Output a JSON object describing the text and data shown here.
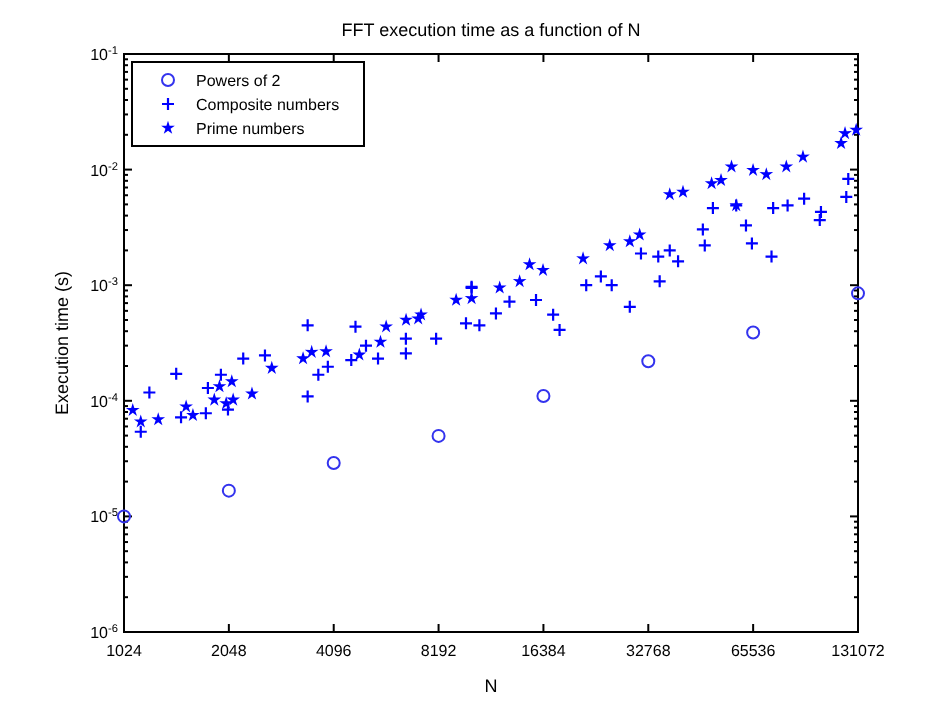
{
  "chart_data": {
    "type": "scatter",
    "title": "FFT execution time as a function of N",
    "xlabel": "N",
    "ylabel": "Execution time (s)",
    "log": "xy",
    "grid": false,
    "legend": "top left",
    "xlim": [
      1024,
      131072
    ],
    "xticks": [
      1024,
      2048,
      4096,
      8192,
      16384,
      32768,
      65536,
      131072
    ],
    "ylim": [
      1e-06,
      0.1
    ],
    "yticks": [
      {
        "value": 1e-06,
        "label": "10$^{-6}$"
      },
      {
        "value": 1e-05,
        "label": "10$^{-5}$"
      },
      {
        "value": 0.0001,
        "label": "10$^{-4}$"
      },
      {
        "value": 0.001,
        "label": "10$^{-3}$"
      },
      {
        "value": 0.01,
        "label": "10$^{-2}$"
      },
      {
        "value": 0.1,
        "label": "10$^{-1}$"
      }
    ],
    "series": [
      {
        "name": "Powers of 2",
        "color": "#3333ee",
        "marker": "circle",
        "x": [
          1024,
          2048,
          4096,
          8192,
          16384,
          32768,
          65536,
          131072
        ],
        "values": [
          1e-05,
          1.67e-05,
          2.9e-05,
          4.97e-05,
          0.00011,
          0.00022,
          0.00039,
          0.00085
        ]
      },
      {
        "name": "Composite numbers",
        "color": "#0000ff",
        "marker": "cross",
        "x": [
          1144,
          1211,
          1446,
          1493,
          1759,
          1783,
          1943,
          2036,
          2252,
          2600,
          3448,
          3448,
          3700,
          3940,
          4730,
          4600,
          5070,
          5490,
          6600,
          6600,
          8060,
          9820,
          10190,
          10190,
          10730,
          11970,
          13090,
          15600,
          17470,
          18230,
          21740,
          23950,
          25730,
          29000,
          31220,
          35000,
          35330,
          37760,
          39900,
          47000,
          47600,
          50230,
          58600,
          62500,
          65000,
          74000,
          74800,
          82300,
          91800,
          101800,
          102600,
          121300,
          122900
        ],
        "values": [
          5.4e-05,
          0.000118,
          0.000171,
          7.2e-05,
          7.8e-05,
          0.000129,
          0.000168,
          8.4e-05,
          0.000232,
          0.000247,
          0.00045,
          0.000109,
          0.000168,
          0.000197,
          0.000438,
          0.000225,
          0.0003,
          0.000232,
          0.000257,
          0.000345,
          0.000345,
          0.000468,
          0.00095,
          0.00097,
          0.00045,
          0.00057,
          0.00072,
          0.000745,
          0.000556,
          0.00041,
          0.001,
          0.00119,
          0.001,
          0.00065,
          0.00188,
          0.00177,
          0.00108,
          0.002,
          0.00161,
          0.00304,
          0.00221,
          0.00465,
          0.0049,
          0.00329,
          0.0023,
          0.00177,
          0.00465,
          0.0049,
          0.0056,
          0.00366,
          0.0043,
          0.0058,
          0.0083
        ]
      },
      {
        "name": "Prime numbers",
        "color": "#0000ff",
        "marker": "star",
        "x": [
          1085,
          1144,
          1284,
          1544,
          1615,
          1860,
          1925,
          2088,
          2012,
          2107,
          2386,
          2720,
          3345,
          3541,
          3894,
          4852,
          5580,
          5793,
          6608,
          7160,
          7296,
          9200,
          10190,
          12270,
          14000,
          14950,
          16340,
          21290,
          25400,
          29000,
          30950,
          37760,
          41220,
          49800,
          53000,
          56800,
          58600,
          65500,
          71500,
          81600,
          91100,
          117200,
          120300,
          129500
        ],
        "values": [
          8.3e-05,
          6.6e-05,
          6.9e-05,
          8.9e-05,
          7.5e-05,
          0.000102,
          0.000133,
          0.000147,
          9.5e-05,
          0.000102,
          0.000115,
          0.000192,
          0.000232,
          0.000264,
          0.000267,
          0.00025,
          0.000323,
          0.000438,
          0.0005,
          0.000514,
          0.000556,
          0.000745,
          0.00077,
          0.00095,
          0.00108,
          0.00151,
          0.00135,
          0.0017,
          0.00221,
          0.00239,
          0.00273,
          0.0061,
          0.0064,
          0.0076,
          0.0081,
          0.0106,
          0.0049,
          0.0099,
          0.0091,
          0.0106,
          0.0129,
          0.0169,
          0.0206,
          0.022
        ]
      }
    ]
  }
}
